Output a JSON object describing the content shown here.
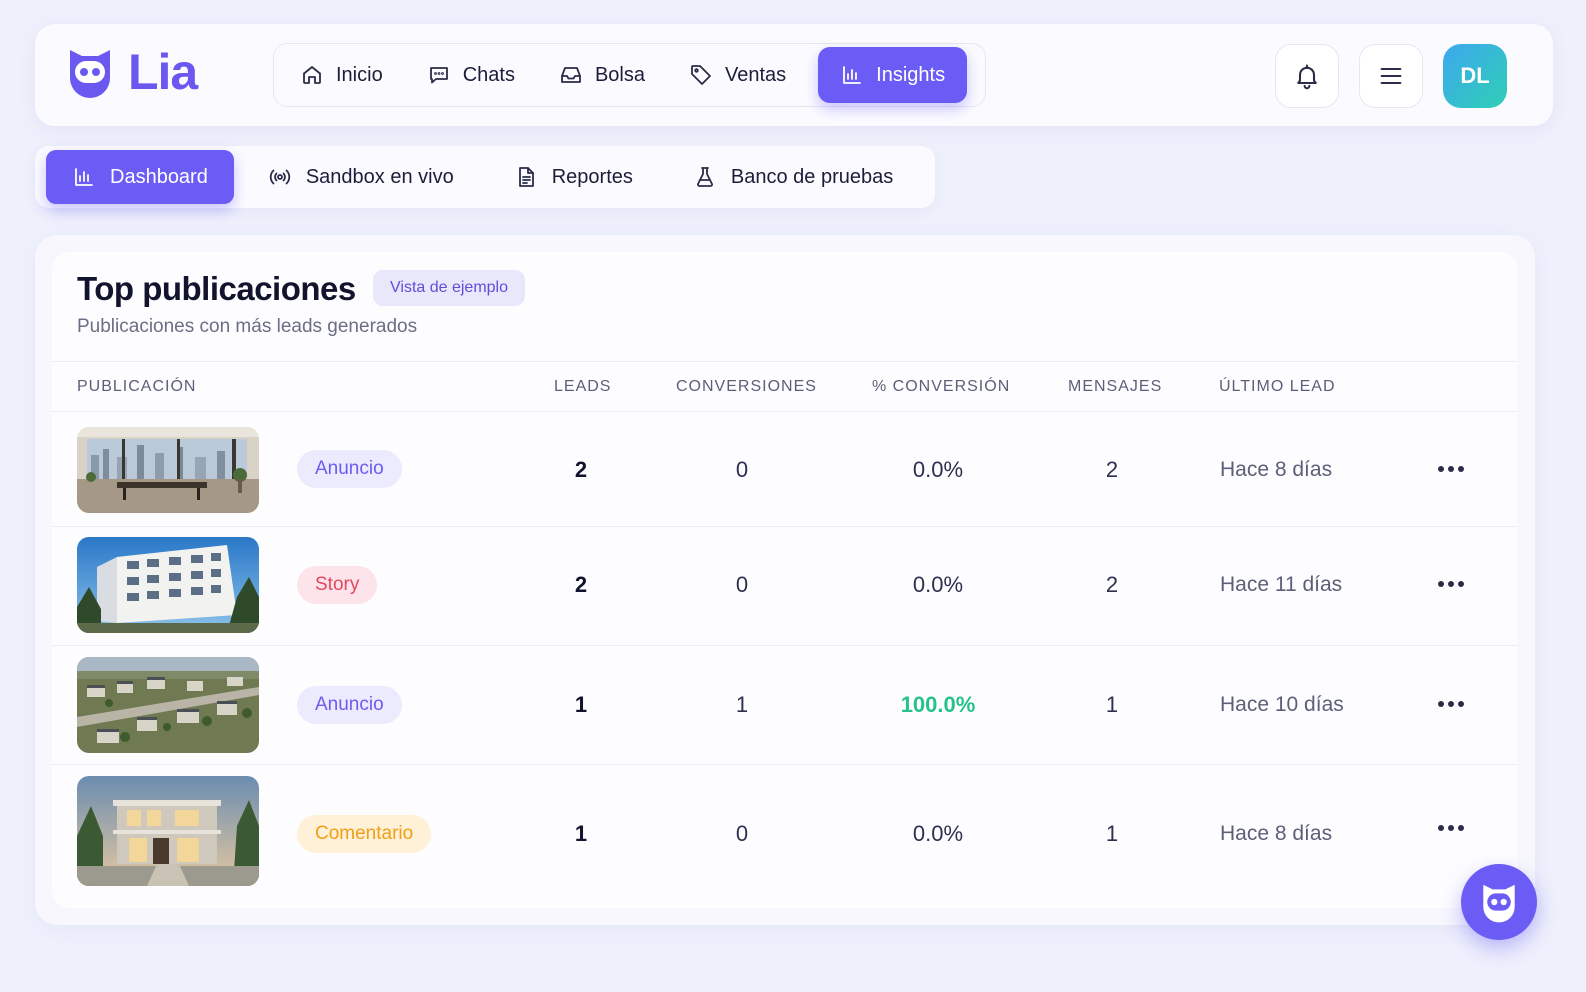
{
  "app": {
    "logo_text": "Lia"
  },
  "nav": {
    "items": [
      {
        "label": "Inicio",
        "icon": "home-icon"
      },
      {
        "label": "Chats",
        "icon": "chat-icon"
      },
      {
        "label": "Bolsa",
        "icon": "inbox-icon"
      },
      {
        "label": "Ventas",
        "icon": "tag-icon"
      },
      {
        "label": "Insights",
        "icon": "bar-chart-icon",
        "active": true
      }
    ]
  },
  "header": {
    "avatar_initials": "DL",
    "bell_icon": "bell-icon",
    "menu_icon": "hamburger-icon"
  },
  "subnav": {
    "items": [
      {
        "label": "Dashboard",
        "icon": "bar-chart-icon",
        "active": true
      },
      {
        "label": "Sandbox en vivo",
        "icon": "broadcast-icon"
      },
      {
        "label": "Reportes",
        "icon": "document-icon"
      },
      {
        "label": "Banco de pruebas",
        "icon": "flask-icon"
      }
    ]
  },
  "card": {
    "title": "Top publicaciones",
    "badge": "Vista de ejemplo",
    "subtitle": "Publicaciones con más leads generados"
  },
  "table": {
    "headers": [
      "PUBLICACIÓN",
      "LEADS",
      "CONVERSIONES",
      "% CONVERSIÓN",
      "MENSAJES",
      "ÚLTIMO LEAD"
    ],
    "rows": [
      {
        "type": "Anuncio",
        "leads": "2",
        "conversiones": "0",
        "pct": "0.0%",
        "mensajes": "2",
        "ultimo": "Hace 8 días",
        "image": "modern office interior with city view"
      },
      {
        "type": "Story",
        "leads": "2",
        "conversiones": "0",
        "pct": "0.0%",
        "mensajes": "2",
        "ultimo": "Hace 11 días",
        "image": "white apartment building under blue sky"
      },
      {
        "type": "Anuncio",
        "leads": "1",
        "conversiones": "1",
        "pct": "100.0%",
        "mensajes": "1",
        "ultimo": "Hace 10 días",
        "image": "aerial view of residential neighborhood"
      },
      {
        "type": "Comentario",
        "leads": "1",
        "conversiones": "0",
        "pct": "0.0%",
        "mensajes": "1",
        "ultimo": "Hace 8 días",
        "image": "modern two-story house at dusk"
      }
    ]
  },
  "colors": {
    "accent": "#6a5cf5",
    "success": "#27c28a",
    "story": "#e2475e",
    "comentario": "#f0a015"
  }
}
